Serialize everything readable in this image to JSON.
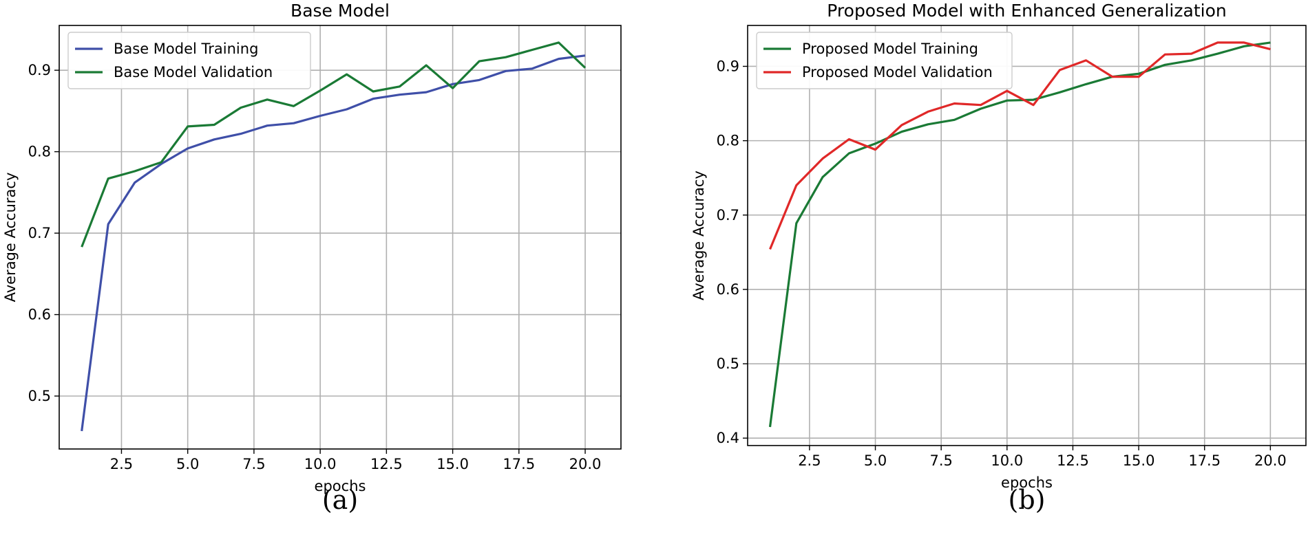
{
  "chart_data": [
    {
      "type": "line",
      "title": "Base Model",
      "xlabel": "epochs",
      "ylabel": "Average Accuracy",
      "caption": "(a)",
      "grid": true,
      "legend_position": "top-left",
      "xlim": [
        0.15,
        21.35
      ],
      "ylim": [
        0.435,
        0.955
      ],
      "xticks": [
        2.5,
        5.0,
        7.5,
        10.0,
        12.5,
        15.0,
        17.5,
        20.0
      ],
      "xtick_labels": [
        "2.5",
        "5.0",
        "7.5",
        "10.0",
        "12.5",
        "15.0",
        "17.5",
        "20.0"
      ],
      "yticks": [
        0.5,
        0.6,
        0.7,
        0.8,
        0.9
      ],
      "ytick_labels": [
        "0.5",
        "0.6",
        "0.7",
        "0.8",
        "0.9"
      ],
      "x": [
        1,
        2,
        3,
        4,
        5,
        6,
        7,
        8,
        9,
        10,
        11,
        12,
        13,
        14,
        15,
        16,
        17,
        18,
        19,
        20
      ],
      "series": [
        {
          "name": "Base Model  Training",
          "color": "#3f4fa8",
          "values": [
            0.457,
            0.711,
            0.762,
            0.785,
            0.804,
            0.815,
            0.822,
            0.832,
            0.835,
            0.844,
            0.852,
            0.865,
            0.87,
            0.873,
            0.883,
            0.888,
            0.899,
            0.902,
            0.914,
            0.918
          ]
        },
        {
          "name": "Base Model  Validation",
          "color": "#1a7a35",
          "values": [
            0.683,
            0.767,
            0.776,
            0.787,
            0.831,
            0.833,
            0.854,
            0.864,
            0.856,
            0.875,
            0.895,
            0.874,
            0.88,
            0.906,
            0.878,
            0.911,
            0.916,
            0.925,
            0.934,
            0.903
          ]
        }
      ]
    },
    {
      "type": "line",
      "title": "Proposed Model with Enhanced Generalization",
      "xlabel": "epochs",
      "ylabel": "Average Accuracy",
      "caption": "(b)",
      "grid": true,
      "legend_position": "top-left",
      "xlim": [
        0.15,
        21.35
      ],
      "ylim": [
        0.39,
        0.955
      ],
      "xticks": [
        2.5,
        5.0,
        7.5,
        10.0,
        12.5,
        15.0,
        17.5,
        20.0
      ],
      "xtick_labels": [
        "2.5",
        "5.0",
        "7.5",
        "10.0",
        "12.5",
        "15.0",
        "17.5",
        "20.0"
      ],
      "yticks": [
        0.4,
        0.5,
        0.6,
        0.7,
        0.8,
        0.9
      ],
      "ytick_labels": [
        "0.4",
        "0.5",
        "0.6",
        "0.7",
        "0.8",
        "0.9"
      ],
      "x": [
        1,
        2,
        3,
        4,
        5,
        6,
        7,
        8,
        9,
        10,
        11,
        12,
        13,
        14,
        15,
        16,
        17,
        18,
        19,
        20
      ],
      "series": [
        {
          "name": "Proposed Model Training",
          "color": "#1a7a35",
          "values": [
            0.415,
            0.689,
            0.751,
            0.783,
            0.796,
            0.812,
            0.822,
            0.828,
            0.843,
            0.854,
            0.855,
            0.865,
            0.876,
            0.886,
            0.89,
            0.902,
            0.908,
            0.917,
            0.927,
            0.932
          ]
        },
        {
          "name": "Proposed Model Validation",
          "color": "#e02828",
          "values": [
            0.654,
            0.74,
            0.776,
            0.802,
            0.788,
            0.821,
            0.839,
            0.85,
            0.848,
            0.867,
            0.848,
            0.895,
            0.908,
            0.886,
            0.886,
            0.916,
            0.917,
            0.932,
            0.932,
            0.923
          ]
        }
      ]
    }
  ]
}
